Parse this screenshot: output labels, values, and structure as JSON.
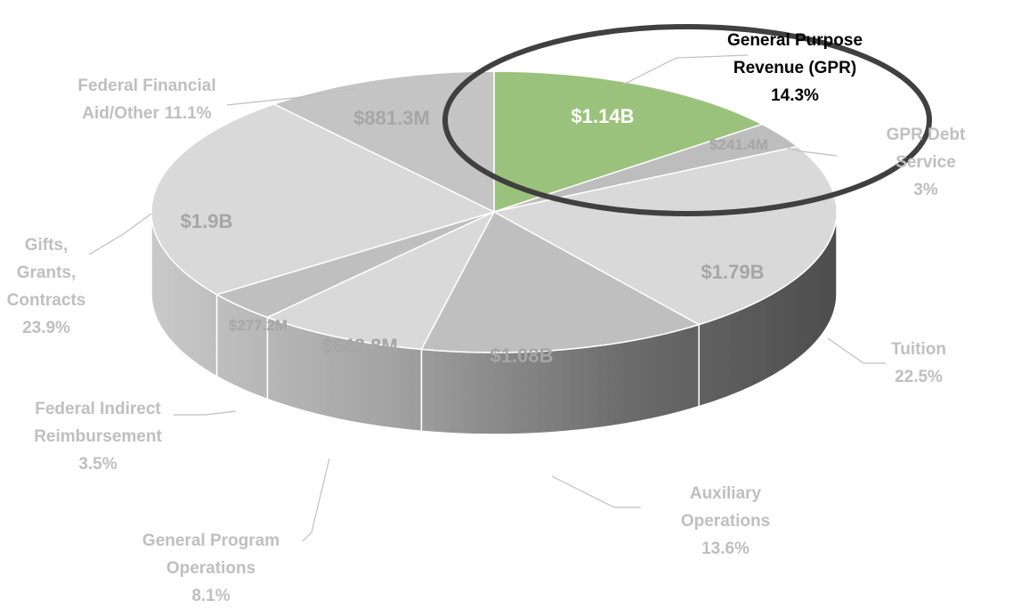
{
  "chart_data": {
    "type": "pie",
    "3d": true,
    "categories": [
      "General Purpose\nRevenue (GPR)",
      "GPR Debt Service",
      "Tuition",
      "Auxiliary\nOperations",
      "General Program\nOperations",
      "Federal Indirect\nReimbursement",
      "Gifts,\nGrants,\nContracts",
      "Federal Financial\nAid/Other"
    ],
    "values": [
      14.3,
      3,
      22.5,
      13.6,
      8.1,
      3.5,
      23.9,
      11.1
    ],
    "value_labels": [
      "14.3%",
      "3%",
      "22.5%",
      "13.6%",
      "8.1%",
      "3.5%",
      "23.9%",
      "11.1%"
    ],
    "amount_labels": [
      "$1.14B",
      "$241.4M",
      "$1.79B",
      "$1.08B",
      "$642.8M",
      "$277.2M",
      "$1.9B",
      "$881.3M"
    ],
    "colors": [
      "#9bc27c",
      "#bdbdbd",
      "#d9d9d9",
      "#bfbfbf",
      "#d9d9d9",
      "#bfbfbf",
      "#d9d9d9",
      "#c4c4c4"
    ]
  }
}
